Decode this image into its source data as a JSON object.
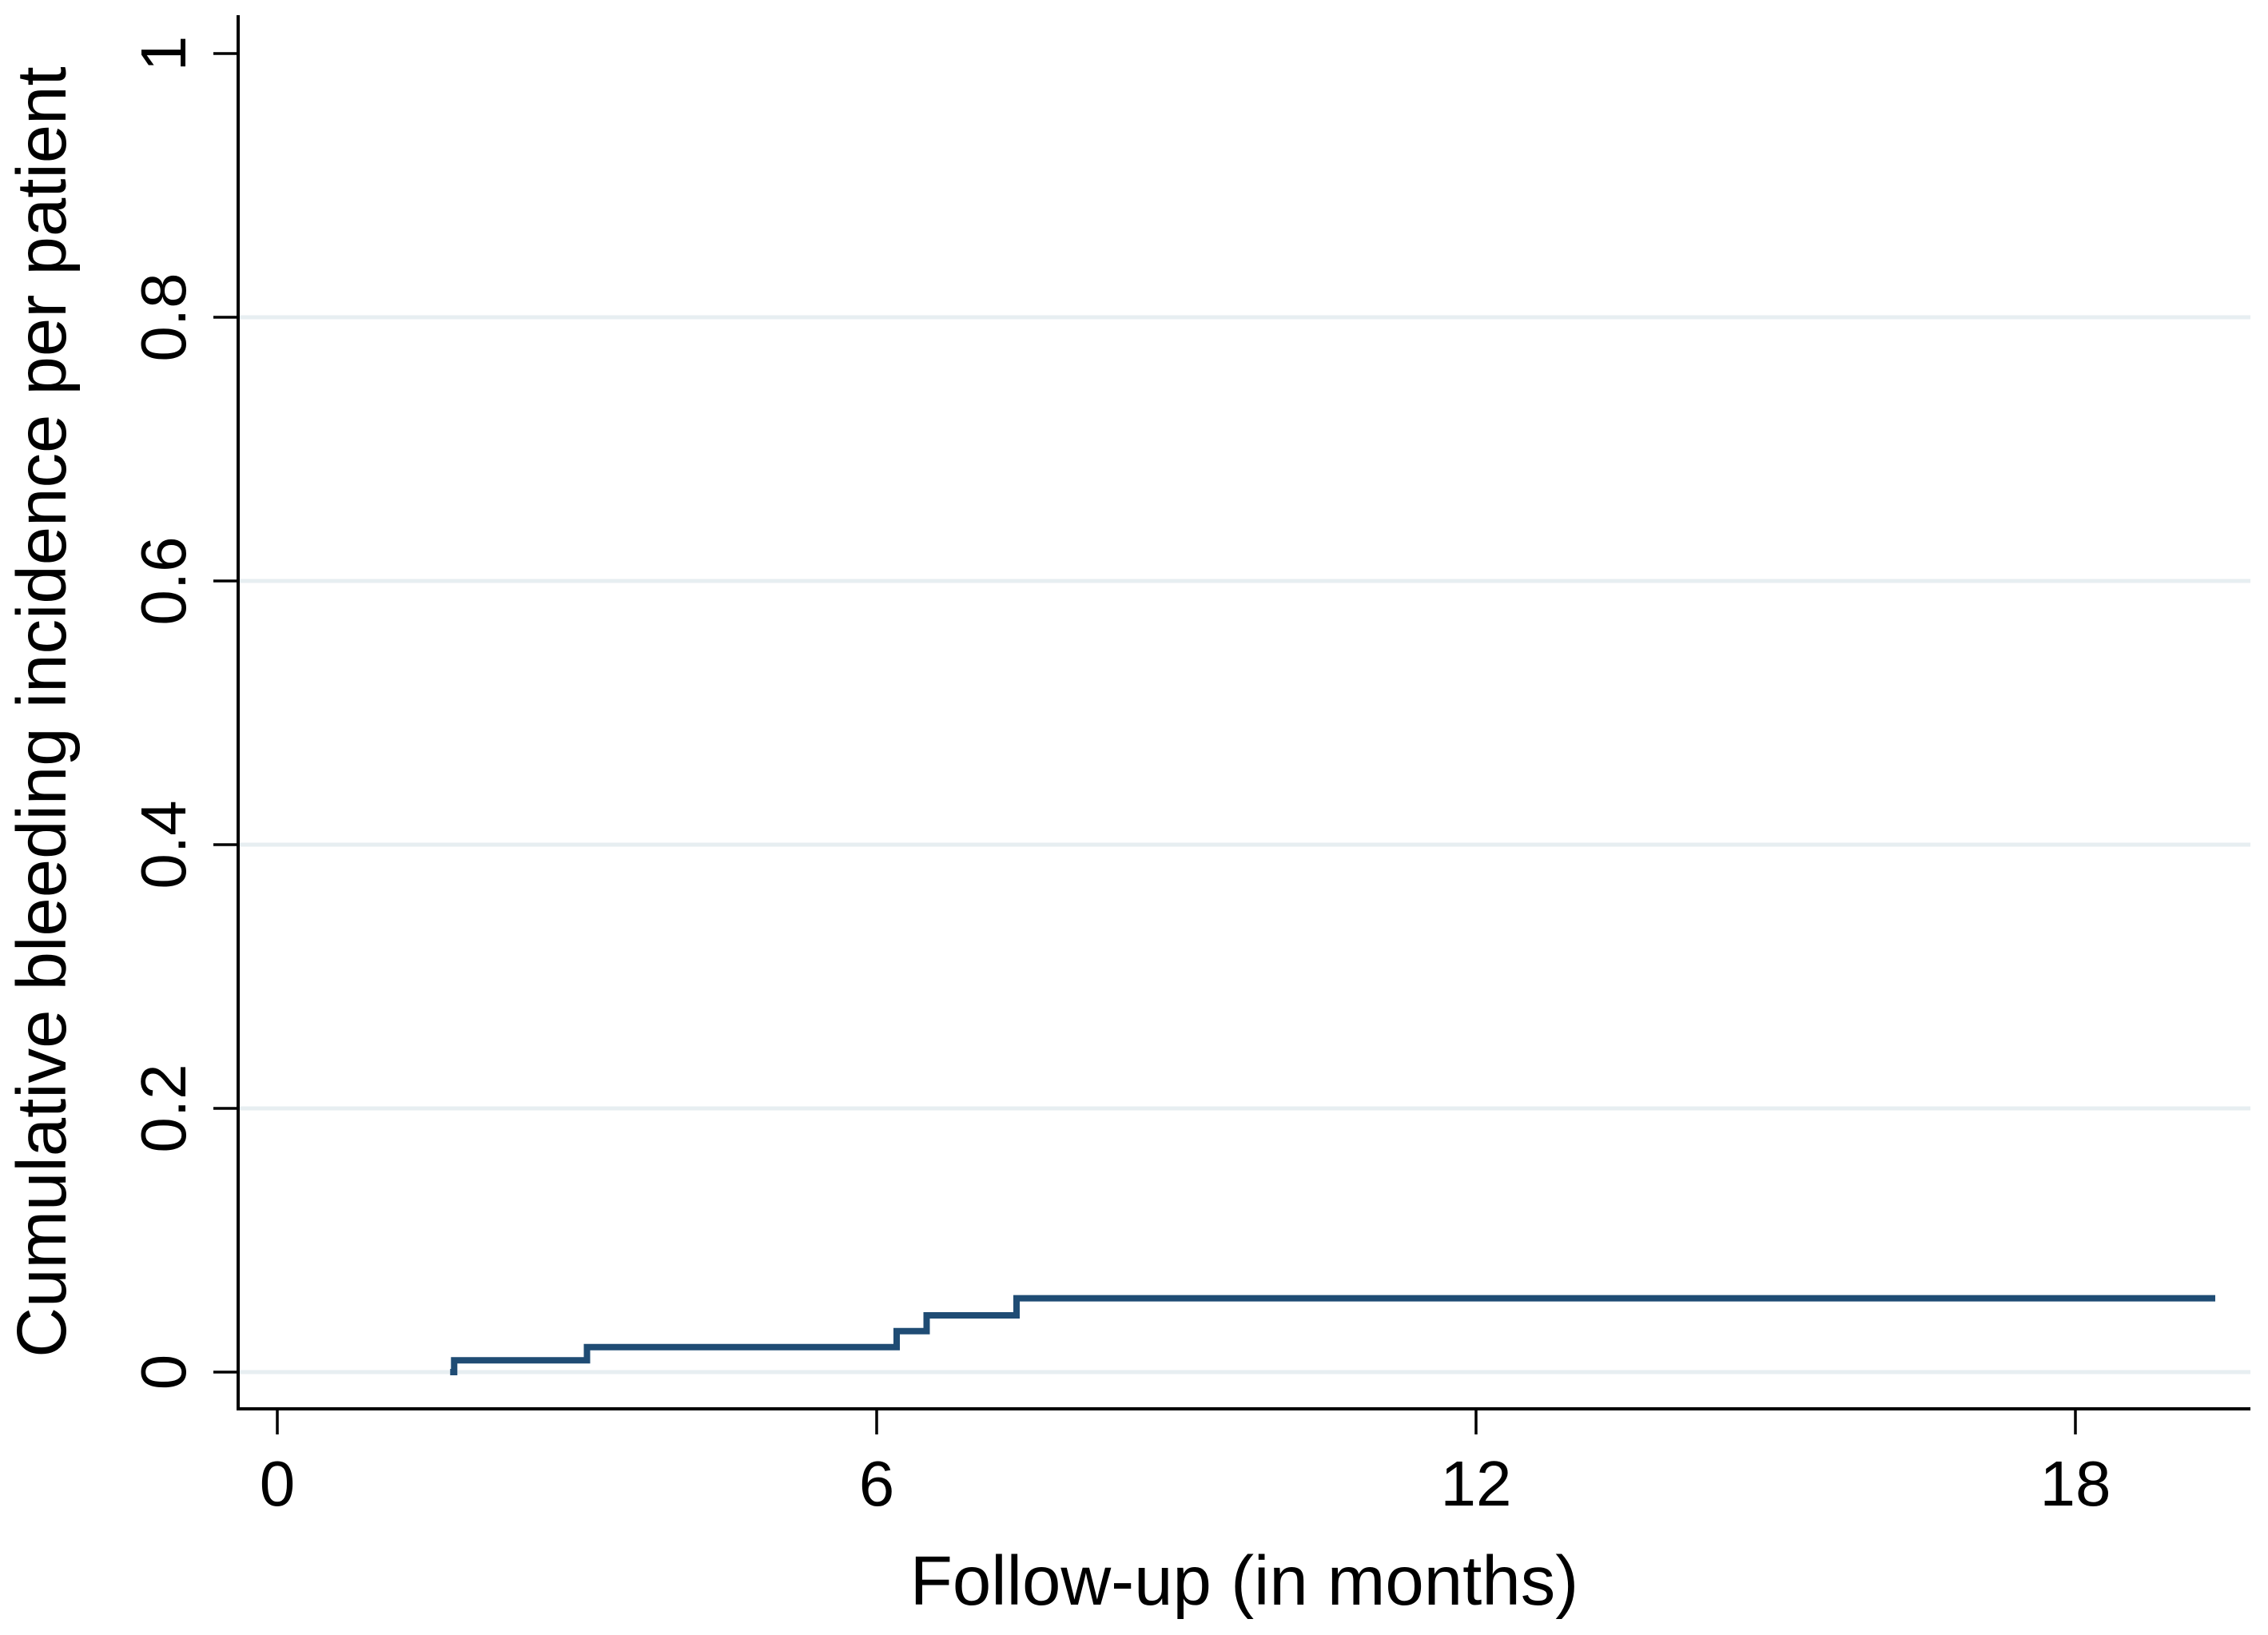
{
  "figure": {
    "description": "Kaplan-Meier style step plot of cumulative bleeding incidence during follow-up",
    "background_color": "#ffffff"
  },
  "chart_data": {
    "type": "line",
    "line_style": "step-after",
    "title": "",
    "xlabel": "Follow-up (in months)",
    "ylabel": "Cumulative bleeding incidence per patient",
    "xlim": [
      0,
      19.75
    ],
    "ylim": [
      0,
      1
    ],
    "x_ticks": [
      {
        "value": 0,
        "label": "0"
      },
      {
        "value": 6,
        "label": "6"
      },
      {
        "value": 12,
        "label": "12"
      },
      {
        "value": 18,
        "label": "18"
      }
    ],
    "y_ticks": [
      {
        "value": 0,
        "label": "0"
      },
      {
        "value": 0.2,
        "label": "0.2"
      },
      {
        "value": 0.4,
        "label": "0.4"
      },
      {
        "value": 0.6,
        "label": "0.6"
      },
      {
        "value": 0.8,
        "label": "0.8"
      },
      {
        "value": 1,
        "label": "1"
      }
    ],
    "y_gridlines": [
      0,
      0.2,
      0.4,
      0.6,
      0.8
    ],
    "grid": "horizontal only, light blue-gray",
    "legend_position": "none",
    "y_tick_label_angle": 90,
    "series": [
      {
        "name": "cumulative bleeding incidence",
        "color": "#1f4c74",
        "start_t": 1.73,
        "end_t": 19.4,
        "events": [
          {
            "t": 1.77,
            "cum_incidence": 0.009
          },
          {
            "t": 3.1,
            "cum_incidence": 0.019
          },
          {
            "t": 6.2,
            "cum_incidence": 0.031
          },
          {
            "t": 6.5,
            "cum_incidence": 0.043
          },
          {
            "t": 7.4,
            "cum_incidence": 0.056
          }
        ]
      }
    ],
    "colors": {
      "curve": "#1f4c74",
      "gridline": "#e7eef1",
      "axis": "#000000",
      "text": "#000000",
      "background": "#ffffff"
    }
  }
}
